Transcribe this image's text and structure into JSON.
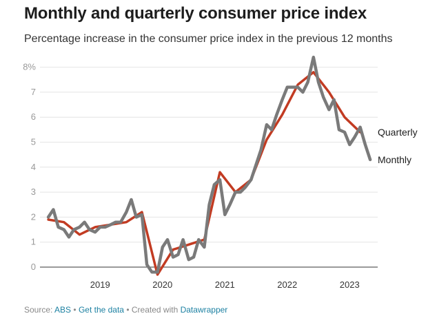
{
  "title": "Monthly and quarterly consumer price index",
  "subtitle": "Percentage increase in the consumer price index in the previous 12 months",
  "footer": {
    "source_label": "Source:",
    "source_name": "ABS",
    "separator": "•",
    "get_data": "Get the data",
    "created_with": "Created with",
    "tool": "Datawrapper"
  },
  "colors": {
    "monthly": "#7a7a7a",
    "quarterly": "#c23b22",
    "grid": "#e4e4e4",
    "text": "#1d1d1d",
    "link": "#1d81a2"
  },
  "chart_data": {
    "type": "line",
    "title": "Monthly and quarterly consumer price index",
    "subtitle": "Percentage increase in the consumer price index in the previous 12 months",
    "xlabel": "",
    "ylabel": "",
    "ylim": [
      0,
      8.4
    ],
    "yticks": [
      0,
      1,
      2,
      3,
      4,
      5,
      6,
      7,
      8
    ],
    "ytick_labels": [
      "0",
      "1",
      "2",
      "3",
      "4",
      "5",
      "6",
      "7",
      "8%"
    ],
    "xticks": [
      2019,
      2020,
      2021,
      2022,
      2023
    ],
    "xtick_labels": [
      "2019",
      "2020",
      "2021",
      "2022",
      "2023"
    ],
    "grid": true,
    "legend": "direct labels at line ends",
    "series": [
      {
        "name": "Monthly",
        "color": "#7a7a7a",
        "x": [
          2018.67,
          2018.75,
          2018.83,
          2018.92,
          2019.0,
          2019.08,
          2019.17,
          2019.25,
          2019.33,
          2019.42,
          2019.5,
          2019.58,
          2019.67,
          2019.75,
          2019.83,
          2019.92,
          2020.0,
          2020.08,
          2020.17,
          2020.25,
          2020.33,
          2020.42,
          2020.5,
          2020.58,
          2020.67,
          2020.75,
          2020.83,
          2020.92,
          2021.0,
          2021.08,
          2021.17,
          2021.25,
          2021.33,
          2021.42,
          2021.5,
          2021.58,
          2021.67,
          2021.75,
          2021.83,
          2021.92,
          2022.0,
          2022.08,
          2022.17,
          2022.25,
          2022.33,
          2022.42,
          2022.5,
          2022.58,
          2022.67,
          2022.75,
          2022.83,
          2022.92,
          2023.0,
          2023.08,
          2023.17,
          2023.25,
          2023.33,
          2023.42,
          2023.5,
          2023.58,
          2023.67,
          2023.75,
          2023.83
        ],
        "values": [
          2.0,
          2.3,
          1.6,
          1.5,
          1.2,
          1.5,
          1.6,
          1.8,
          1.5,
          1.4,
          1.6,
          1.6,
          1.7,
          1.8,
          1.8,
          2.2,
          2.7,
          2.0,
          2.1,
          0.1,
          -0.2,
          -0.2,
          0.8,
          1.1,
          0.4,
          0.5,
          1.1,
          0.3,
          0.4,
          1.1,
          0.8,
          2.5,
          3.3,
          3.5,
          2.1,
          2.5,
          3.0,
          3.0,
          3.2,
          3.5,
          4.1,
          4.7,
          5.7,
          5.5,
          6.1,
          6.7,
          7.2,
          7.2,
          7.2,
          7.0,
          7.4,
          8.4,
          7.4,
          6.8,
          6.3,
          6.7,
          5.5,
          5.4,
          4.9,
          5.2,
          5.6,
          4.9,
          4.3
        ]
      },
      {
        "name": "Quarterly",
        "color": "#c23b22",
        "x": [
          2018.67,
          2018.92,
          2019.17,
          2019.42,
          2019.67,
          2019.92,
          2020.17,
          2020.42,
          2020.67,
          2020.92,
          2021.17,
          2021.42,
          2021.67,
          2021.92,
          2022.17,
          2022.42,
          2022.67,
          2022.92,
          2023.17,
          2023.42,
          2023.67
        ],
        "values": [
          1.9,
          1.8,
          1.3,
          1.6,
          1.7,
          1.8,
          2.2,
          -0.3,
          0.7,
          0.9,
          1.1,
          3.8,
          3.0,
          3.5,
          5.1,
          6.1,
          7.3,
          7.8,
          7.0,
          6.0,
          5.4
        ]
      }
    ],
    "end_labels": [
      "Quarterly",
      "Monthly"
    ]
  }
}
